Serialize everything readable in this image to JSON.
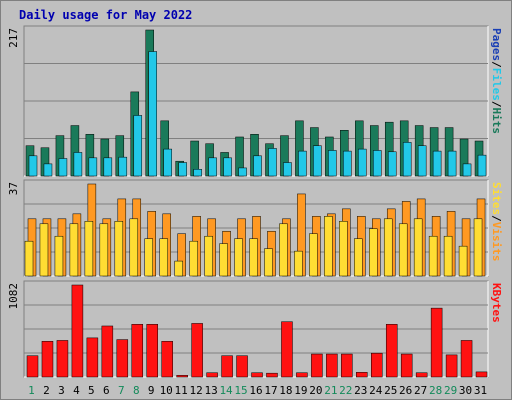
{
  "chart_data": {
    "type": "bar",
    "title": "Daily usage for May 2022",
    "categories": [
      "1",
      "2",
      "3",
      "4",
      "5",
      "6",
      "7",
      "8",
      "9",
      "10",
      "11",
      "12",
      "13",
      "14",
      "15",
      "16",
      "17",
      "18",
      "19",
      "20",
      "21",
      "22",
      "23",
      "24",
      "25",
      "26",
      "27",
      "28",
      "29",
      "30",
      "31"
    ],
    "weekend_days": [
      "1",
      "7",
      "8",
      "14",
      "15",
      "21",
      "22",
      "28",
      "29"
    ],
    "panels": [
      {
        "name": "hits-files-pages",
        "max_label": "217",
        "max": 217,
        "legend": [
          "Pages",
          "/",
          "Files",
          "/",
          "Hits"
        ],
        "series": [
          {
            "name": "Hits",
            "color": "#1a7a5a",
            "values": [
              45,
              42,
              60,
              75,
              62,
              55,
              60,
              125,
              217,
              82,
              22,
              52,
              48,
              35,
              58,
              62,
              48,
              60,
              82,
              72,
              58,
              68,
              82,
              75,
              80,
              82,
              75,
              72,
              72,
              55,
              52
            ]
          },
          {
            "name": "Files",
            "color": "#22c8e8",
            "values": [
              30,
              18,
              26,
              35,
              27,
              27,
              28,
              90,
              185,
              40,
              20,
              10,
              27,
              27,
              12,
              30,
              41,
              20,
              37,
              45,
              38,
              37,
              40,
              38,
              36,
              50,
              45,
              37,
              37,
              18,
              31
            ]
          },
          {
            "name": "Pages",
            "color": "#1a3fb5",
            "values": [
              0,
              0,
              0,
              0,
              0,
              0,
              0,
              0,
              0,
              0,
              0,
              0,
              0,
              0,
              0,
              0,
              0,
              0,
              0,
              0,
              0,
              0,
              0,
              0,
              0,
              0,
              0,
              0,
              0,
              0,
              0
            ]
          }
        ]
      },
      {
        "name": "visits-sites",
        "max_label": "37",
        "max": 37,
        "legend": [
          "Sites",
          "/",
          "Visits"
        ],
        "series": [
          {
            "name": "Visits",
            "color": "#ff9922",
            "values": [
              23,
              23,
              23,
              25,
              37,
              23,
              31,
              31,
              26,
              25,
              17,
              24,
              23,
              18,
              23,
              24,
              18,
              23,
              33,
              24,
              25,
              27,
              24,
              23,
              27,
              30,
              31,
              24,
              26,
              23,
              31
            ]
          },
          {
            "name": "Sites",
            "color": "#ffdd33",
            "values": [
              14,
              21,
              16,
              21,
              22,
              21,
              22,
              23,
              15,
              15,
              6,
              14,
              16,
              13,
              15,
              15,
              11,
              21,
              10,
              17,
              24,
              22,
              15,
              19,
              23,
              21,
              23,
              16,
              16,
              12,
              23
            ]
          }
        ]
      },
      {
        "name": "kbytes",
        "max_label": "1082",
        "max": 1082,
        "legend": [
          "KBytes"
        ],
        "series": [
          {
            "name": "KBytes",
            "color": "#ff1111",
            "values": [
              250,
              420,
              430,
              1082,
              460,
              600,
              440,
              620,
              620,
              420,
              20,
              630,
              50,
              250,
              250,
              50,
              45,
              650,
              50,
              270,
              270,
              270,
              55,
              280,
              620,
              270,
              50,
              810,
              260,
              430,
              60
            ]
          }
        ]
      }
    ]
  }
}
